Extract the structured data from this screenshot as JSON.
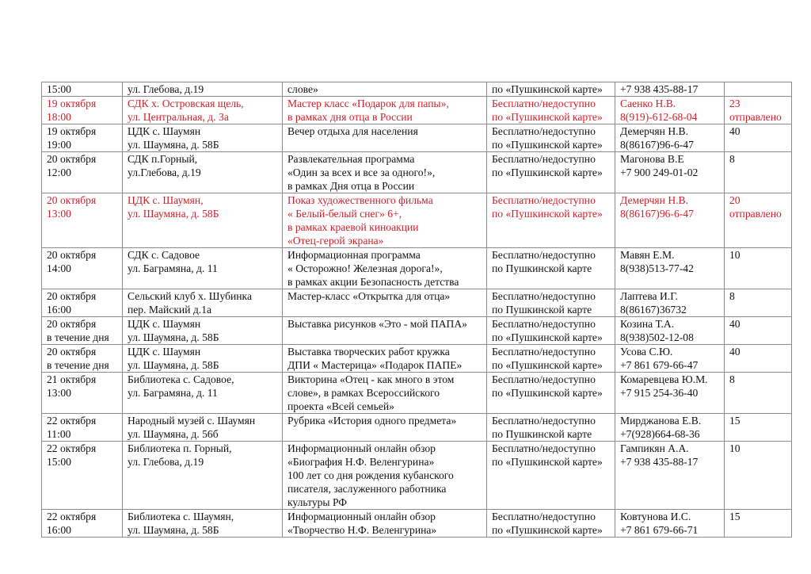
{
  "colors": {
    "highlight_text": "#d0202a",
    "text": "#111111",
    "border": "#8a8a8a"
  },
  "rows": [
    {
      "highlight": false,
      "h": 18,
      "cells": [
        "15:00",
        "ул. Глебова, д.19",
        "слове»",
        "по «Пушкинской карте»",
        "+7 938 435-88-17",
        ""
      ]
    },
    {
      "highlight": true,
      "h": 34,
      "cells": [
        "19 октября\n18:00",
        "СДК х. Островская щель,\nул. Центральная, д. 3а",
        "Мастер класс «Подарок для  папы»,\nв рамках дня отца в России",
        "Бесплатно/недоступно\nпо «Пушкинской карте»",
        "Саенко Н.В.\n8(919)-612-68-04",
        "23\nотправлено"
      ]
    },
    {
      "highlight": false,
      "h": 34,
      "cells": [
        "19 октября\n19:00",
        "ЦДК с. Шаумян\nул. Шаумяна, д. 58Б",
        "Вечер отдыха для населения",
        "Бесплатно/недоступно\nпо «Пушкинской карте»",
        "Демерчян Н.В.\n8(86167)96-6-47",
        "40"
      ]
    },
    {
      "highlight": false,
      "h": 51,
      "cells": [
        "20 октября\n12:00",
        "СДК п.Горный,\nул.Глебова, д.19",
        "Развлекательная программа\n«Один за всех и все за одного!»,\nв рамках Дня отца в России",
        "Бесплатно/недоступно\nпо «Пушкинской карте»",
        "Магонова В.Е\n+7 900 249-01-02",
        "8"
      ]
    },
    {
      "highlight": true,
      "h": 68,
      "cells": [
        "20 октября\n13:00",
        "ЦДК с. Шаумян,\nул. Шаумяна, д. 58Б",
        "Показ художественного фильма\n« Белый-белый снег» 6+,\n в рамках краевой киноакции\n «Отец-герой экрана»",
        "Бесплатно/недоступно\nпо «Пушкинской карте»",
        "Демерчян Н.В.\n8(86167)96-6-47",
        "20\nотправлено"
      ]
    },
    {
      "highlight": false,
      "h": 51,
      "cells": [
        "20 октября\n14:00",
        "СДК с. Садовое\nул. Баграмяна, д. 11",
        "Информационная программа\n« Осторожно! Железная дорога!»,\nв рамках акции Безопасность детства",
        "Бесплатно/недоступно\nпо Пушкинской карте",
        "Мавян Е.М.\n8(938)513-77-42",
        "10"
      ]
    },
    {
      "highlight": false,
      "h": 34,
      "cells": [
        "20 октября\n16:00",
        "Сельский клуб х. Шубинка\nпер. Майский д.1а",
        "Мастер-класс «Открытка для отца»",
        "Бесплатно/недоступно\nпо Пушкинской карте",
        "Лаптева И.Г.\n8(86167)36732",
        "8"
      ]
    },
    {
      "highlight": false,
      "h": 34,
      "cells": [
        "20 октября\nв течение дня",
        "ЦДК с. Шаумян\nул. Шаумяна, д. 58Б",
        "Выставка рисунков «Это - мой ПАПА»",
        "Бесплатно/недоступно\nпо «Пушкинской карте»",
        "Козина Т.А.\n8(938)502-12-08",
        "40"
      ]
    },
    {
      "highlight": false,
      "h": 34,
      "cells": [
        "20 октября\nв течение дня",
        "ЦДК с. Шаумян\nул. Шаумяна, д. 58Б",
        "Выставка творческих работ кружка\nДПИ « Мастерица» «Подарок ПАПЕ»",
        "Бесплатно/недоступно\nпо «Пушкинской карте»",
        "Усова С.Ю.\n+7 861 679-66-47",
        "40"
      ]
    },
    {
      "highlight": false,
      "h": 51,
      "cells": [
        "21 октября\n13:00",
        "Библиотека с. Садовое,\nул. Баграмяна, д. 11",
        "Викторина «Отец - как много в этом\nслове», в рамках Всероссийского\nпроекта «Всей семьей»",
        "Бесплатно/недоступно\nпо «Пушкинской карте»",
        "Комаревцева Ю.М.\n+7 915 254-36-40",
        "8"
      ]
    },
    {
      "highlight": false,
      "h": 34,
      "cells": [
        "22 октября\n11:00",
        "Народный музей с. Шаумян\nул. Шаумяна, д. 56б",
        "Рубрика «История одного предмета»",
        "Бесплатно/недоступно\nпо Пушкинской карте",
        "Мирджанова Е.В.\n+7(928)664-68-36",
        "15"
      ]
    },
    {
      "highlight": false,
      "h": 85,
      "cells": [
        "22 октября\n15:00",
        "Библиотека п. Горный,\nул. Глебова, д.19",
        "Информационный онлайн обзор\n«Биография Н.Ф. Веленгурина»\n100 лет со дня рождения кубанского\nписателя, заслуженного работника\nкультуры РФ",
        "Бесплатно/недоступно\nпо «Пушкинской карте»",
        "Гампикян  А.А.\n+7 938 435-88-17",
        "10"
      ]
    },
    {
      "highlight": false,
      "h": 34,
      "cells": [
        "22 октября\n16:00",
        "Библиотека с. Шаумян,\nул. Шаумяна,  д. 58Б",
        "Информационный онлайн обзор\n«Творчество Н.Ф. Веленгурина»",
        "Бесплатно/недоступно\nпо «Пушкинской карте»",
        "Ковтунова И.С.\n+7 861 679-66-71",
        "15"
      ]
    }
  ]
}
